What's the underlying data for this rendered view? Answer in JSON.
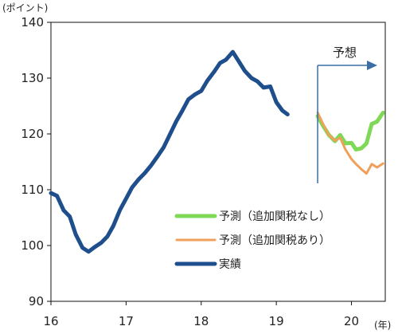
{
  "chart_data": {
    "type": "line",
    "ylabel": "(ポイント)",
    "xlabel": "(年)",
    "ylim": [
      90,
      140
    ],
    "y_ticks": [
      90,
      100,
      110,
      120,
      130,
      140
    ],
    "xlim": [
      16,
      20.45
    ],
    "x_ticks": [
      {
        "value": 16,
        "label": "16"
      },
      {
        "value": 17,
        "label": "17"
      },
      {
        "value": 18,
        "label": "18"
      },
      {
        "value": 19,
        "label": "19"
      },
      {
        "value": 20,
        "label": "20"
      }
    ],
    "grid": false,
    "legend_position": "bottom-right",
    "annotation": {
      "text": "予想",
      "x_start": 19.55
    },
    "series": [
      {
        "name": "予測（追加関税なし）",
        "color": "#7ed957",
        "width": 5,
        "points": [
          [
            19.55,
            123.2
          ],
          [
            19.62,
            121.5
          ],
          [
            19.7,
            119.8
          ],
          [
            19.78,
            118.7
          ],
          [
            19.85,
            119.8
          ],
          [
            19.92,
            118.3
          ],
          [
            20.0,
            118.4
          ],
          [
            20.06,
            117.2
          ],
          [
            20.13,
            117.4
          ],
          [
            20.2,
            118.3
          ],
          [
            20.27,
            121.8
          ],
          [
            20.34,
            122.2
          ],
          [
            20.42,
            123.8
          ]
        ]
      },
      {
        "name": "予測（追加関税あり）",
        "color": "#f0a05a",
        "width": 3,
        "points": [
          [
            19.55,
            123.8
          ],
          [
            19.62,
            121.8
          ],
          [
            19.7,
            119.8
          ],
          [
            19.78,
            118.8
          ],
          [
            19.85,
            119.3
          ],
          [
            19.92,
            117.2
          ],
          [
            20.0,
            115.5
          ],
          [
            20.06,
            114.6
          ],
          [
            20.13,
            113.7
          ],
          [
            20.2,
            112.9
          ],
          [
            20.27,
            114.6
          ],
          [
            20.34,
            114.0
          ],
          [
            20.42,
            114.7
          ]
        ]
      },
      {
        "name": "実績",
        "color": "#1f4e8c",
        "width": 5,
        "points": [
          [
            16.0,
            109.4
          ],
          [
            16.08,
            108.9
          ],
          [
            16.17,
            106.3
          ],
          [
            16.25,
            105.2
          ],
          [
            16.33,
            102.0
          ],
          [
            16.42,
            99.6
          ],
          [
            16.5,
            98.9
          ],
          [
            16.58,
            99.7
          ],
          [
            16.67,
            100.5
          ],
          [
            16.75,
            101.6
          ],
          [
            16.83,
            103.5
          ],
          [
            16.92,
            106.4
          ],
          [
            17.0,
            108.4
          ],
          [
            17.08,
            110.4
          ],
          [
            17.17,
            111.9
          ],
          [
            17.25,
            113.0
          ],
          [
            17.33,
            114.3
          ],
          [
            17.42,
            116.0
          ],
          [
            17.5,
            117.6
          ],
          [
            17.58,
            119.8
          ],
          [
            17.67,
            122.3
          ],
          [
            17.75,
            124.2
          ],
          [
            17.83,
            126.2
          ],
          [
            17.92,
            127.1
          ],
          [
            18.0,
            127.7
          ],
          [
            18.08,
            129.5
          ],
          [
            18.17,
            131.1
          ],
          [
            18.25,
            132.7
          ],
          [
            18.33,
            133.3
          ],
          [
            18.42,
            134.7
          ],
          [
            18.5,
            133.0
          ],
          [
            18.58,
            131.3
          ],
          [
            18.67,
            130.0
          ],
          [
            18.75,
            129.4
          ],
          [
            18.83,
            128.3
          ],
          [
            18.92,
            128.5
          ],
          [
            19.0,
            125.7
          ],
          [
            19.08,
            124.2
          ],
          [
            19.15,
            123.5
          ]
        ]
      }
    ]
  },
  "legend": [
    {
      "label": "予測（追加関税なし）",
      "color": "#7ed957"
    },
    {
      "label": "予測（追加関税あり）",
      "color": "#f0a05a"
    },
    {
      "label": "実績",
      "color": "#1f4e8c"
    }
  ]
}
